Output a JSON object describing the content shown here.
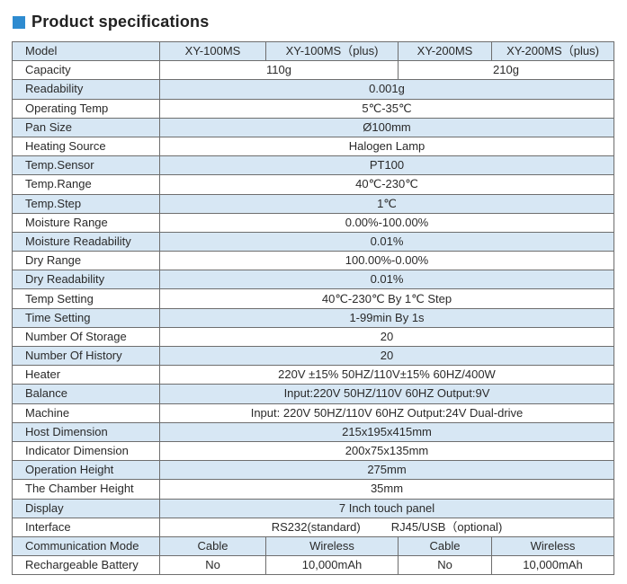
{
  "title": "Product specifications",
  "colors": {
    "accent": "#2e8bd0",
    "row_shade": "#d7e7f4",
    "border": "#6e6e6e"
  },
  "models": [
    "XY-100MS",
    "XY-100MS（plus)",
    "XY-200MS",
    "XY-200MS（plus)"
  ],
  "header_label": "Model",
  "rows": {
    "capacity": {
      "label": "Capacity",
      "value_100": "110g",
      "value_200": "210g"
    },
    "readability": {
      "label": "Readability",
      "value": "0.001g"
    },
    "operating_temp": {
      "label": "Operating Temp",
      "value": "5℃-35℃"
    },
    "pan_size": {
      "label": "Pan Size",
      "value": "Ø100mm"
    },
    "heating_source": {
      "label": "Heating Source",
      "value": "Halogen Lamp"
    },
    "temp_sensor": {
      "label": "Temp.Sensor",
      "value": "PT100"
    },
    "temp_range": {
      "label": "Temp.Range",
      "value": "40℃-230℃"
    },
    "temp_step": {
      "label": "Temp.Step",
      "value": "1℃"
    },
    "moisture_range": {
      "label": "Moisture Range",
      "value": "0.00%-100.00%"
    },
    "moisture_readability": {
      "label": "Moisture Readability",
      "value": "0.01%"
    },
    "dry_range": {
      "label": "Dry Range",
      "value": "100.00%-0.00%"
    },
    "dry_readability": {
      "label": "Dry Readability",
      "value": "0.01%"
    },
    "temp_setting": {
      "label": "Temp Setting",
      "value": "40℃-230℃ By 1℃ Step"
    },
    "time_setting": {
      "label": "Time Setting",
      "value": "1-99min By 1s"
    },
    "number_of_storage": {
      "label": "Number Of Storage",
      "value": "20"
    },
    "number_of_history": {
      "label": "Number Of History",
      "value": "20"
    },
    "heater": {
      "label": "Heater",
      "value": "220V ±15% 50HZ/110V±15% 60HZ/400W"
    },
    "balance": {
      "label": "Balance",
      "value": "Input:220V 50HZ/110V 60HZ  Output:9V"
    },
    "machine": {
      "label": "Machine",
      "value": "Input: 220V 50HZ/110V 60HZ  Output:24V  Dual-drive"
    },
    "host_dimension": {
      "label": "Host Dimension",
      "value": "215x195x415mm"
    },
    "indicator_dimension": {
      "label": "Indicator Dimension",
      "value": "200x75x135mm"
    },
    "operation_height": {
      "label": "Operation Height",
      "value": "275mm"
    },
    "chamber_height": {
      "label": "The Chamber Height",
      "value": "35mm"
    },
    "display": {
      "label": "Display",
      "value": "7 Inch touch panel"
    },
    "interface": {
      "label": "Interface",
      "value_a": "RS232(standard)",
      "value_b": "RJ45/USB（optional)"
    },
    "communication_mode": {
      "label": "Communication Mode",
      "values": [
        "Cable",
        "Wireless",
        "Cable",
        "Wireless"
      ]
    },
    "rechargeable_battery": {
      "label": "Rechargeable Battery",
      "values": [
        "No",
        "10,000mAh",
        "No",
        "10,000mAh"
      ]
    }
  }
}
